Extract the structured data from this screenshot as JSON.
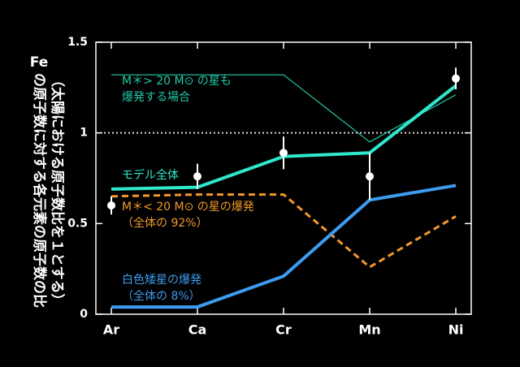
{
  "chart_data": {
    "type": "line",
    "ylabel": [
      "Fe",
      "の原子数に対する各元素の原子数の比",
      "（太陽における原子数比を１とする）"
    ],
    "categories": [
      "Ar",
      "Ca",
      "Cr",
      "Mn",
      "Ni"
    ],
    "ylim": [
      0,
      1.5
    ],
    "yticks": [
      0,
      0.5,
      1,
      1.5
    ],
    "reference_line": 1,
    "series": [
      {
        "label": [
          "M＊> 20 M⊙ の星も",
          "爆発する場合"
        ],
        "color": "#22c9a8",
        "style": "thin",
        "values": [
          1.32,
          1.32,
          1.32,
          0.95,
          1.21
        ]
      },
      {
        "label": [
          "モデル全体"
        ],
        "color": "#2fe8cc",
        "style": "thick",
        "values": [
          0.69,
          0.7,
          0.87,
          0.89,
          1.26
        ]
      },
      {
        "label": [
          "M＊< 20 M⊙ の星の爆発",
          "（全体の 92%）"
        ],
        "color": "#f3982a",
        "style": "dashed",
        "values": [
          0.65,
          0.66,
          0.66,
          0.26,
          0.54
        ]
      },
      {
        "label": [
          "白色矮星の爆発",
          "（全体の 8%）"
        ],
        "color": "#3d9cf0",
        "style": "thick",
        "values": [
          0.04,
          0.04,
          0.21,
          0.63,
          0.71
        ]
      }
    ],
    "observed": {
      "color": "#ffffff",
      "values": [
        0.6,
        0.76,
        0.89,
        0.76,
        1.3
      ],
      "errors": [
        0.05,
        0.07,
        0.09,
        0.13,
        0.06
      ]
    }
  }
}
